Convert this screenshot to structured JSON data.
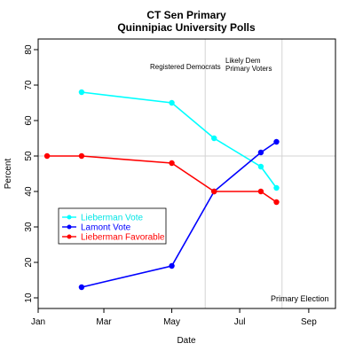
{
  "chart_data": {
    "type": "line",
    "title": "CT Sen Primary",
    "subtitle": "Quinnipiac University Polls",
    "xlabel": "Date",
    "ylabel": "Percent",
    "x_axis": {
      "type": "date",
      "range": [
        "2006-01-01",
        "2006-09-25"
      ],
      "ticks": [
        {
          "date": "2006-01-01",
          "label": "Jan"
        },
        {
          "date": "2006-03-01",
          "label": "Mar"
        },
        {
          "date": "2006-05-01",
          "label": "May"
        },
        {
          "date": "2006-07-01",
          "label": "Jul"
        },
        {
          "date": "2006-09-01",
          "label": "Sep"
        }
      ]
    },
    "y_axis": {
      "range": [
        7,
        83
      ],
      "ticks": [
        10,
        20,
        30,
        40,
        50,
        60,
        70,
        80
      ]
    },
    "grid": false,
    "reference_lines": {
      "horizontal": [
        50
      ],
      "vertical": [
        {
          "date": "2006-05-31",
          "label": "Likely Dem Primary Voters",
          "left_label": "Registered Democrats"
        },
        {
          "date": "2006-08-08",
          "label": "Primary Election"
        }
      ]
    },
    "annotations": {
      "registered": "Registered Democrats",
      "likely_line1": "Likely Dem",
      "likely_line2": "Primary Voters",
      "primary": "Primary Election"
    },
    "legend_position": "middle-left",
    "series": [
      {
        "name": "Lieberman Vote",
        "color": "#00ffff",
        "points": [
          {
            "x": "2006-02-09",
            "y": 68
          },
          {
            "x": "2006-05-01",
            "y": 65
          },
          {
            "x": "2006-06-08",
            "y": 55
          },
          {
            "x": "2006-07-20",
            "y": 47
          },
          {
            "x": "2006-08-03",
            "y": 41
          }
        ]
      },
      {
        "name": "Lamont Vote",
        "color": "#0000ff",
        "points": [
          {
            "x": "2006-02-09",
            "y": 13
          },
          {
            "x": "2006-05-01",
            "y": 19
          },
          {
            "x": "2006-06-08",
            "y": 40
          },
          {
            "x": "2006-07-20",
            "y": 51
          },
          {
            "x": "2006-08-03",
            "y": 54
          }
        ]
      },
      {
        "name": "Lieberman Favorable",
        "color": "#ff0000",
        "points": [
          {
            "x": "2006-01-09",
            "y": 50
          },
          {
            "x": "2006-02-09",
            "y": 50
          },
          {
            "x": "2006-05-01",
            "y": 48
          },
          {
            "x": "2006-06-08",
            "y": 40
          },
          {
            "x": "2006-07-20",
            "y": 40
          },
          {
            "x": "2006-08-03",
            "y": 37
          }
        ]
      }
    ]
  }
}
